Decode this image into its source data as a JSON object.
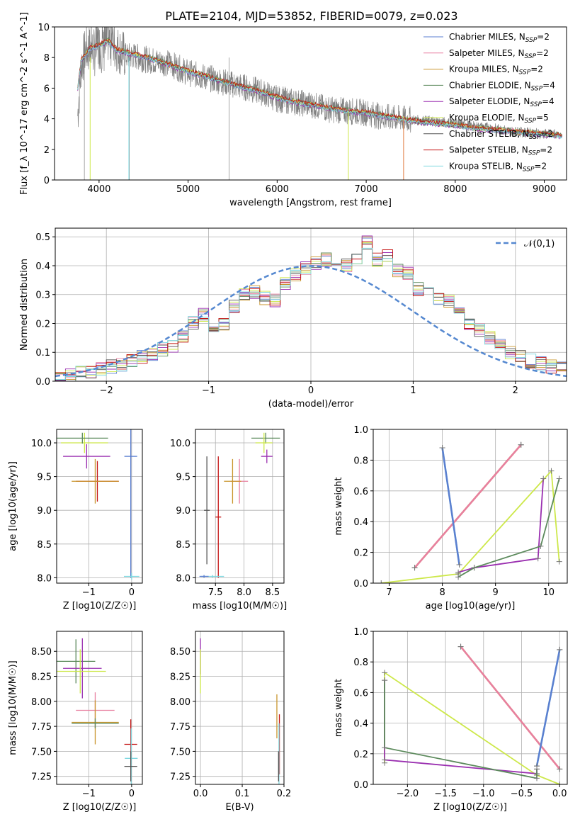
{
  "figure": {
    "title": "PLATE=2104, MJD=53852, FIBERID=0079, z=0.023"
  },
  "colors": {
    "Chabrier MILES": "#5b7fd0",
    "Salpeter MILES": "#e87fa0",
    "Kroupa MILES": "#c9962e",
    "Chabrier ELODIE": "#5c8a5c",
    "Salpeter ELODIE": "#9a2fb0",
    "Kroupa ELODIE": "#cde84a",
    "Chabrier STELIB": "#555555",
    "Salpeter STELIB": "#c41515",
    "Kroupa STELIB": "#7fd8e0",
    "observed": "#808080",
    "gaussian": "#5588d0",
    "model_orange": "#e07a3c",
    "grid": "#b0b0b0"
  },
  "legend": [
    "Chabrier MILES, N_SSP=2",
    "Salpeter MILES, N_SSP=2",
    "Kroupa MILES, N_SSP=2",
    "Chabrier ELODIE, N_SSP=4",
    "Salpeter ELODIE, N_SSP=4",
    "Kroupa ELODIE, N_SSP=5",
    "Chabrier STELIB, N_SSP=2",
    "Salpeter STELIB, N_SSP=2",
    "Kroupa STELIB, N_SSP=2"
  ],
  "chart_data": [
    {
      "id": "spectrum",
      "type": "line",
      "title": "PLATE=2104, MJD=53852, FIBERID=0079, z=0.023",
      "xlabel": "wavelength [Angstrom, rest frame]",
      "ylabel": "Flux [f_λ 10^-17 erg cm^-2 s^-1 A^-1]",
      "xlim": [
        3500,
        9250
      ],
      "ylim": [
        0,
        10
      ],
      "xticks": [
        4000,
        5000,
        6000,
        7000,
        8000,
        9000
      ],
      "yticks": [
        0,
        2,
        4,
        6,
        8,
        10
      ],
      "series": [
        {
          "name": "observed",
          "x": [
            3760,
            3800,
            3850,
            3900,
            3950,
            4000,
            4050,
            4100,
            4200,
            4300,
            4400,
            4500,
            4600,
            4800,
            5000,
            5200,
            5400,
            5600,
            5800,
            6000,
            6200,
            6400,
            6600,
            6800,
            7000,
            7200,
            7400,
            7600,
            7800,
            8000,
            8200,
            8400,
            8600,
            8800,
            9000,
            9150
          ],
          "y": [
            4.2,
            7.5,
            8.5,
            8.6,
            8.3,
            8.8,
            8.4,
            9.2,
            8.6,
            8.1,
            8.1,
            7.9,
            7.8,
            7.6,
            7.0,
            6.7,
            6.4,
            6.1,
            5.8,
            5.3,
            5.1,
            4.9,
            4.6,
            4.5,
            4.4,
            4.1,
            4.0,
            3.9,
            3.8,
            3.7,
            3.5,
            3.4,
            3.2,
            3.1,
            3.0,
            3.0
          ]
        },
        {
          "name": "model",
          "x": [
            3750,
            3800,
            3900,
            4000,
            4100,
            4200,
            4400,
            4600,
            4800,
            5000,
            5200,
            5400,
            5600,
            5800,
            6000,
            6200,
            6400,
            6600,
            6800,
            7000,
            7200,
            7400,
            7600,
            7800,
            8000,
            8200,
            8400,
            8600,
            8800,
            9000,
            9200
          ],
          "y": [
            5.5,
            7.8,
            8.6,
            8.8,
            9.1,
            8.5,
            8.2,
            7.9,
            7.5,
            7.1,
            6.8,
            6.4,
            6.1,
            5.8,
            5.4,
            5.1,
            4.9,
            4.7,
            4.5,
            4.4,
            4.2,
            4.0,
            3.8,
            3.7,
            3.6,
            3.4,
            3.3,
            3.2,
            3.1,
            3.0,
            2.9
          ]
        }
      ]
    },
    {
      "id": "residuals",
      "type": "histogram",
      "xlabel": "(data-model)/error",
      "ylabel": "Normed distribution",
      "xlim": [
        -2.5,
        2.5
      ],
      "ylim": [
        0,
        0.53
      ],
      "xticks": [
        -2,
        -1,
        0,
        1,
        2
      ],
      "yticks": [
        0.0,
        0.1,
        0.2,
        0.3,
        0.4,
        0.5
      ],
      "gaussian_label": "𝒩(0,1)",
      "bin_width": 0.1,
      "values": [
        0.015,
        0.02,
        0.03,
        0.035,
        0.04,
        0.05,
        0.055,
        0.07,
        0.085,
        0.09,
        0.11,
        0.12,
        0.16,
        0.2,
        0.23,
        0.19,
        0.2,
        0.26,
        0.3,
        0.31,
        0.29,
        0.28,
        0.34,
        0.37,
        0.39,
        0.41,
        0.42,
        0.39,
        0.4,
        0.43,
        0.48,
        0.42,
        0.44,
        0.38,
        0.37,
        0.32,
        0.3,
        0.29,
        0.28,
        0.24,
        0.2,
        0.18,
        0.15,
        0.12,
        0.1,
        0.09,
        0.07,
        0.06,
        0.05,
        0.045
      ]
    },
    {
      "id": "z_age",
      "type": "errorbar",
      "xlabel": "Z [log10(Z/Z☉)]",
      "ylabel": "age  [log10(age/yr)]",
      "xlim": [
        -1.75,
        0.25
      ],
      "ylim": [
        7.92,
        10.2
      ],
      "xticks": [
        -1,
        0
      ],
      "yticks": [
        8.0,
        8.5,
        9.0,
        9.5,
        10.0
      ],
      "points": [
        {
          "series": "Kroupa ELODIE",
          "x": -1.1,
          "xerr": 0.55,
          "y": 10.0,
          "yerr": 0.15
        },
        {
          "series": "Chabrier ELODIE",
          "x": -1.15,
          "xerr": 0.6,
          "y": 10.07,
          "yerr": 0.08
        },
        {
          "series": "Salpeter ELODIE",
          "x": -1.05,
          "xerr": 0.55,
          "y": 9.8,
          "yerr": 0.18
        },
        {
          "series": "Salpeter STELIB",
          "x": -0.8,
          "xerr": 0.5,
          "y": 9.43,
          "yerr": 0.3
        },
        {
          "series": "Kroupa MILES",
          "x": -0.85,
          "xerr": 0.55,
          "y": 9.43,
          "yerr": 0.33
        },
        {
          "series": "Chabrier MILES",
          "x": -0.02,
          "xerr": 0.15,
          "y": 9.8,
          "yerr": 1.8
        },
        {
          "series": "Kroupa STELIB",
          "x": 0.0,
          "xerr": 0.18,
          "y": 8.02,
          "yerr": 0.05
        }
      ]
    },
    {
      "id": "mass_age",
      "type": "errorbar",
      "xlabel": "mass [log10(M/M☉)]",
      "xlim": [
        7.15,
        8.7
      ],
      "ylim": [
        7.92,
        10.2
      ],
      "xticks": [
        7.5,
        8.0,
        8.5
      ],
      "yticks": [
        8.0,
        8.5,
        9.0,
        9.5,
        10.0
      ],
      "points": [
        {
          "series": "Chabrier ELODIE",
          "x": 8.38,
          "xerr": 0.25,
          "y": 10.07,
          "yerr": 0.08
        },
        {
          "series": "Kroupa ELODIE",
          "x": 8.35,
          "xerr": 0.15,
          "y": 10.0,
          "yerr": 0.15
        },
        {
          "series": "Salpeter ELODIE",
          "x": 8.4,
          "xerr": 0.1,
          "y": 9.8,
          "yerr": 0.1
        },
        {
          "series": "Salpeter MILES",
          "x": 7.92,
          "xerr": 0.15,
          "y": 9.43,
          "yerr": 0.33
        },
        {
          "series": "Kroupa MILES",
          "x": 7.8,
          "xerr": 0.15,
          "y": 9.43,
          "yerr": 0.33
        },
        {
          "series": "Chabrier STELIB",
          "x": 7.35,
          "xerr": 0.05,
          "y": 9.0,
          "yerr": 0.8
        },
        {
          "series": "Salpeter STELIB",
          "x": 7.55,
          "xerr": 0.05,
          "y": 8.9,
          "yerr": 0.9
        },
        {
          "series": "Kroupa STELIB",
          "x": 7.45,
          "xerr": 0.2,
          "y": 8.02,
          "yerr": 0.02
        },
        {
          "series": "Chabrier MILES",
          "x": 7.3,
          "xerr": 0.08,
          "y": 8.02,
          "yerr": 0.02
        }
      ]
    },
    {
      "id": "age_weight",
      "type": "line",
      "xlabel": "age  [log10(age/yr)]",
      "ylabel": "mass weight",
      "xlim": [
        6.7,
        10.35
      ],
      "ylim": [
        0,
        1
      ],
      "xticks": [
        7,
        8,
        9,
        10
      ],
      "yticks": [
        0.0,
        0.2,
        0.4,
        0.6,
        0.8,
        1.0
      ],
      "series": [
        {
          "name": "Kroupa MILES",
          "x": [
            7.48,
            9.48
          ],
          "y": [
            0.1,
            0.9
          ]
        },
        {
          "name": "Salpeter MILES",
          "x": [
            7.48,
            9.48
          ],
          "y": [
            0.1,
            0.9
          ]
        },
        {
          "name": "Kroupa STELIB",
          "x": [
            8.0,
            8.32
          ],
          "y": [
            0.88,
            0.12
          ]
        },
        {
          "name": "Chabrier MILES",
          "x": [
            8.0,
            8.32
          ],
          "y": [
            0.88,
            0.12
          ]
        },
        {
          "name": "Kroupa ELODIE",
          "x": [
            6.85,
            8.3,
            10.05,
            10.2
          ],
          "y": [
            0.0,
            0.06,
            0.73,
            0.14
          ]
        },
        {
          "name": "Salpeter ELODIE",
          "x": [
            8.3,
            8.6,
            9.8,
            9.9
          ],
          "y": [
            0.07,
            0.1,
            0.16,
            0.68
          ]
        },
        {
          "name": "Chabrier ELODIE",
          "x": [
            8.3,
            8.6,
            9.85,
            10.2
          ],
          "y": [
            0.04,
            0.1,
            0.24,
            0.68
          ]
        }
      ]
    },
    {
      "id": "z_mass",
      "type": "errorbar",
      "xlabel": "Z [log10(Z/Z☉)]",
      "ylabel": "mass [log10(M/M☉)]",
      "xlim": [
        -1.75,
        0.25
      ],
      "ylim": [
        7.17,
        8.7
      ],
      "xticks": [
        -1,
        0
      ],
      "yticks": [
        7.25,
        7.5,
        7.75,
        8.0,
        8.25,
        8.5
      ],
      "points": [
        {
          "series": "Chabrier ELODIE",
          "x": -1.3,
          "xerr": 0.45,
          "y": 8.4,
          "yerr": 0.22
        },
        {
          "series": "Salpeter ELODIE",
          "x": -1.15,
          "xerr": 0.45,
          "y": 8.33,
          "yerr": 0.3
        },
        {
          "series": "Kroupa ELODIE",
          "x": -1.2,
          "xerr": 0.6,
          "y": 8.3,
          "yerr": 0.22
        },
        {
          "series": "Salpeter MILES",
          "x": -0.85,
          "xerr": 0.45,
          "y": 7.91,
          "yerr": 0.18
        },
        {
          "series": "Kroupa MILES",
          "x": -0.85,
          "xerr": 0.55,
          "y": 7.79,
          "yerr": 0.22
        },
        {
          "series": "Chabrier ELODIE",
          "x": -0.85,
          "xerr": 0.55,
          "y": 7.78,
          "yerr": 0.05
        },
        {
          "series": "Salpeter STELIB",
          "x": -0.02,
          "xerr": 0.15,
          "y": 7.57,
          "yerr": 0.25
        },
        {
          "series": "Kroupa STELIB",
          "x": -0.01,
          "xerr": 0.15,
          "y": 7.43,
          "yerr": 0.3
        },
        {
          "series": "Chabrier STELIB",
          "x": -0.02,
          "xerr": 0.15,
          "y": 7.35,
          "yerr": 0.15
        }
      ]
    },
    {
      "id": "ebv_mass",
      "type": "errorbar",
      "xlabel": "E(B-V)",
      "xlim": [
        -0.012,
        0.2
      ],
      "ylim": [
        7.17,
        8.7
      ],
      "xticks": [
        0.0,
        0.1,
        0.2
      ],
      "yticks": [
        7.25,
        7.5,
        7.75,
        8.0,
        8.25,
        8.5
      ],
      "points": [
        {
          "series": "Salpeter ELODIE",
          "x": 0.0,
          "xerr": 0.0,
          "y": 8.45,
          "yerr": 0.18
        },
        {
          "series": "Kroupa ELODIE",
          "x": 0.0,
          "xerr": 0.0,
          "y": 8.3,
          "yerr": 0.22
        },
        {
          "series": "Kroupa MILES",
          "x": 0.183,
          "xerr": 0.0,
          "y": 7.85,
          "yerr": 0.22
        },
        {
          "series": "Salpeter STELIB",
          "x": 0.189,
          "xerr": 0.0,
          "y": 7.57,
          "yerr": 0.3
        },
        {
          "series": "Kroupa STELIB",
          "x": 0.188,
          "xerr": 0.0,
          "y": 7.43,
          "yerr": 0.35
        },
        {
          "series": "Chabrier STELIB",
          "x": 0.187,
          "xerr": 0.0,
          "y": 7.35,
          "yerr": 0.15
        }
      ]
    },
    {
      "id": "z_weight",
      "type": "line",
      "xlabel": "Z [log10(Z/Z☉)]",
      "ylabel": "mass weight",
      "xlim": [
        -2.45,
        0.1
      ],
      "ylim": [
        0,
        1
      ],
      "xticks": [
        -2.0,
        -1.5,
        -1.0,
        -0.5,
        0.0
      ],
      "yticks": [
        0.0,
        0.2,
        0.4,
        0.6,
        0.8,
        1.0
      ],
      "series": [
        {
          "name": "Kroupa MILES",
          "x": [
            -1.3,
            0.0
          ],
          "y": [
            0.9,
            0.1
          ]
        },
        {
          "name": "Salpeter MILES",
          "x": [
            -1.3,
            0.0
          ],
          "y": [
            0.9,
            0.1
          ]
        },
        {
          "name": "Kroupa STELIB",
          "x": [
            -0.3,
            0.0
          ],
          "y": [
            0.12,
            0.88
          ]
        },
        {
          "name": "Chabrier MILES",
          "x": [
            -0.3,
            0.0
          ],
          "y": [
            0.12,
            0.88
          ]
        },
        {
          "name": "Kroupa ELODIE",
          "x": [
            -2.3,
            -2.3,
            -0.3,
            0.0
          ],
          "y": [
            0.14,
            0.73,
            0.06,
            0.0
          ]
        },
        {
          "name": "Salpeter ELODIE",
          "x": [
            -2.3,
            -2.3,
            -0.3,
            -0.3
          ],
          "y": [
            0.68,
            0.16,
            0.07,
            0.1
          ]
        },
        {
          "name": "Chabrier ELODIE",
          "x": [
            -2.3,
            -2.3,
            -0.3,
            -0.3
          ],
          "y": [
            0.68,
            0.24,
            0.04,
            0.1
          ]
        }
      ]
    }
  ]
}
